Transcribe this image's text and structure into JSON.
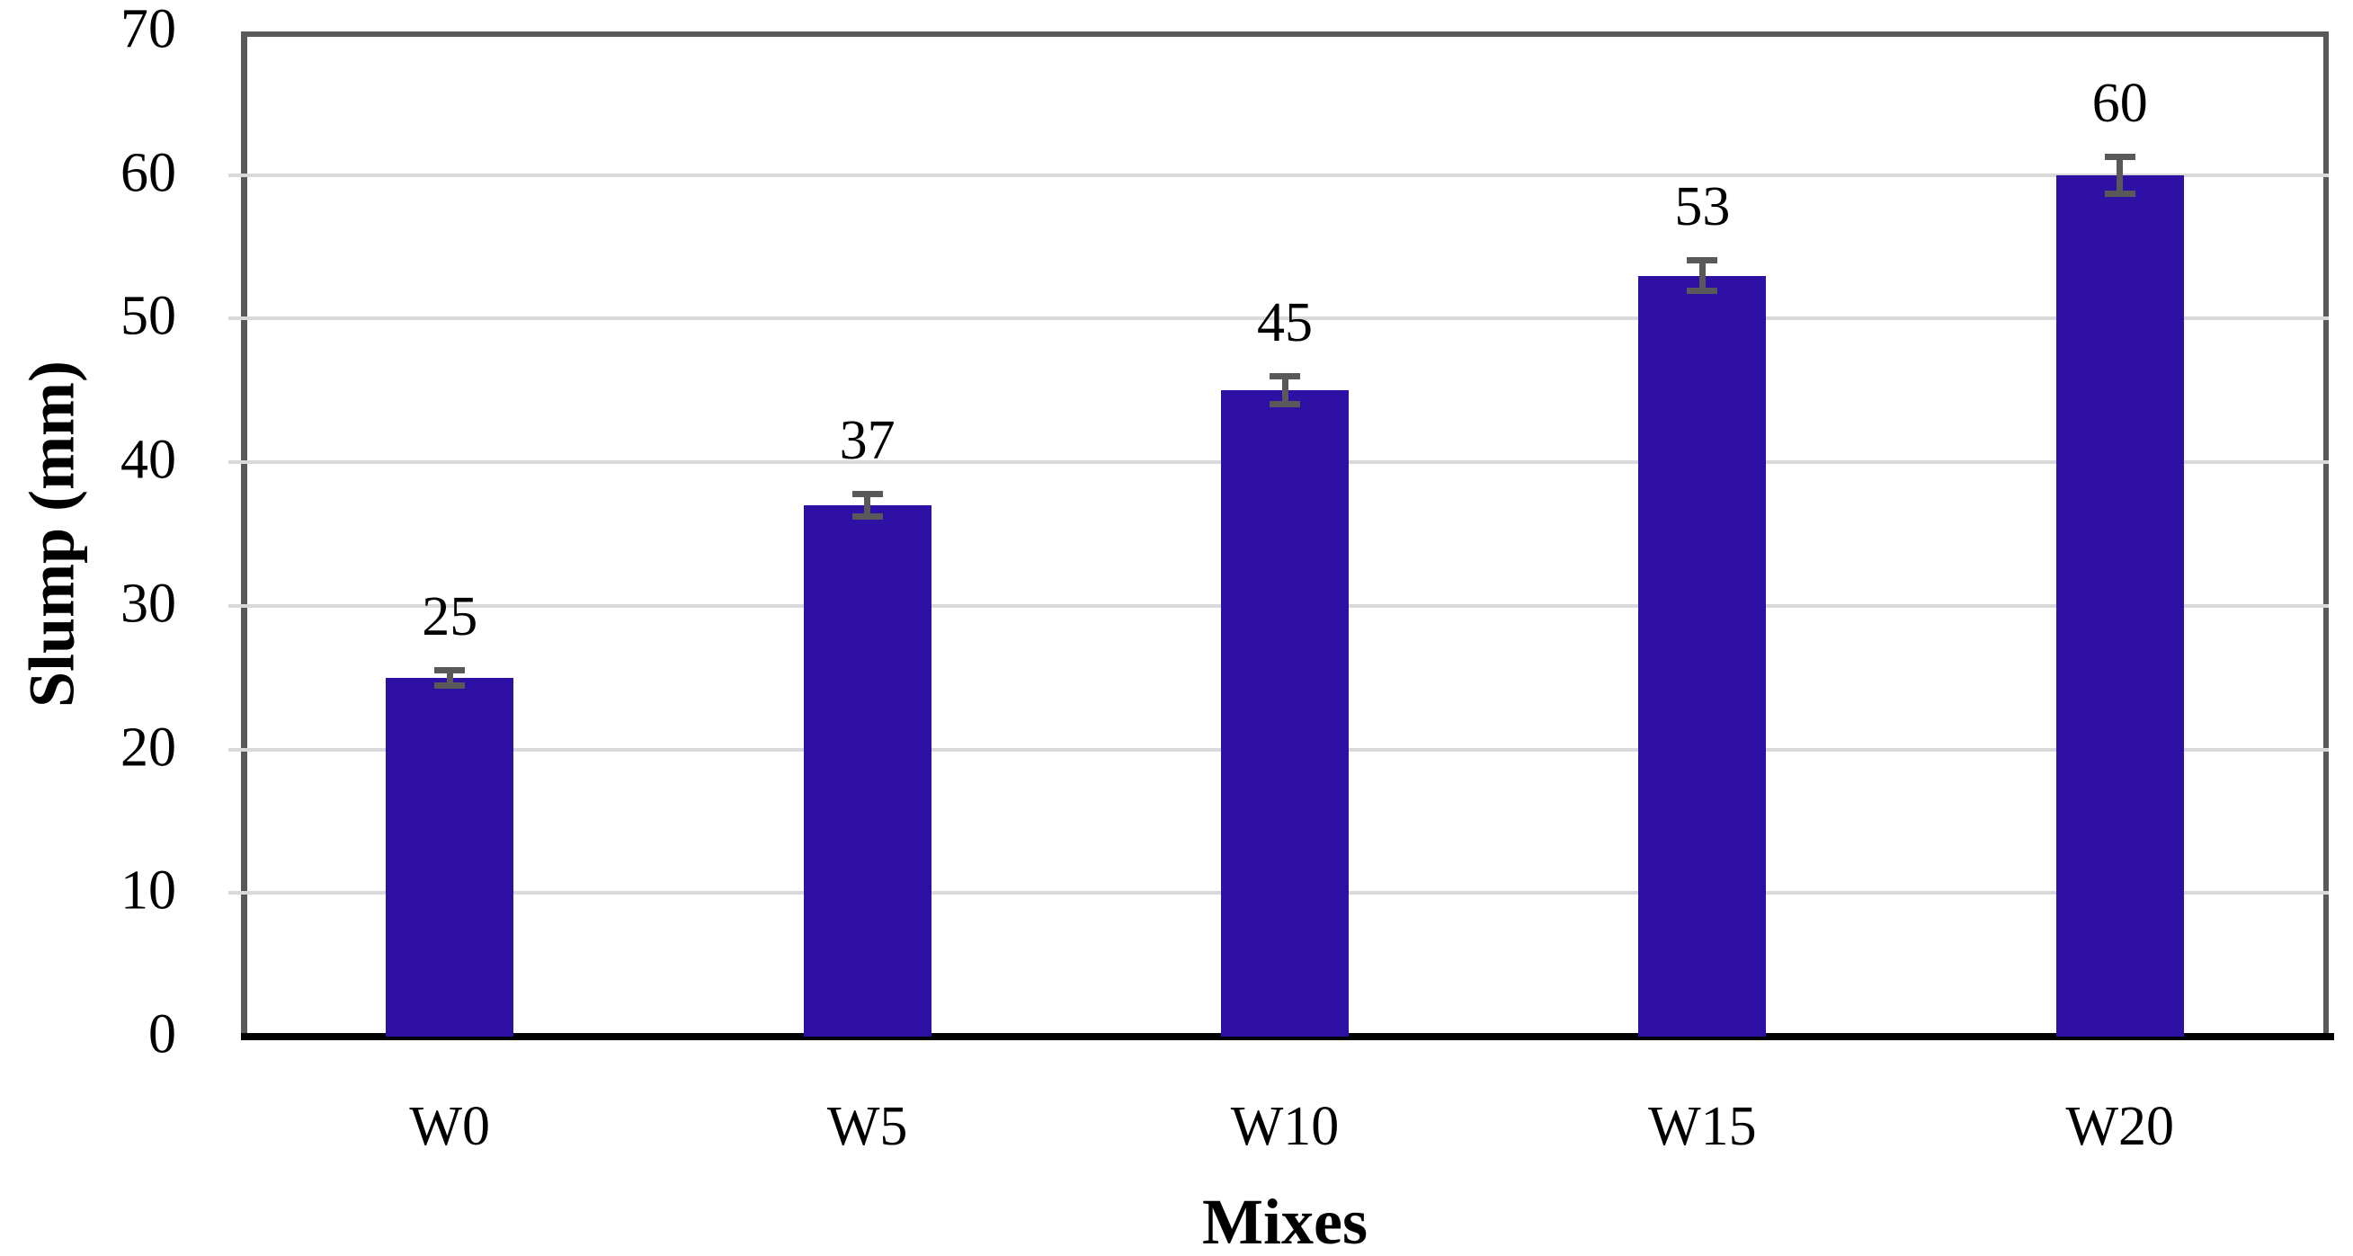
{
  "chart_data": {
    "type": "bar",
    "title": "",
    "categories": [
      "W0",
      "W5",
      "W10",
      "W15",
      "W20"
    ],
    "values": [
      25,
      37,
      45,
      53,
      60
    ],
    "value_labels": [
      "25",
      "37",
      "45",
      "53",
      "60"
    ],
    "errors": [
      0.75,
      1.0,
      1.2,
      1.3,
      1.5
    ],
    "xlabel": "Mixes",
    "ylabel": "Slump (mm)",
    "ylim": [
      0,
      70
    ],
    "ytick_step": 10,
    "ytick_labels": [
      "0",
      "10",
      "20",
      "30",
      "40",
      "50",
      "60",
      "70"
    ],
    "grid": "horizontal",
    "legend": "none",
    "colors": {
      "bar_fill": "#2f10a5",
      "error_bar": "#595959",
      "gridline": "#d9d9d9",
      "axis_line": "#595959",
      "baseline": "#000000",
      "text": "#000000"
    }
  }
}
